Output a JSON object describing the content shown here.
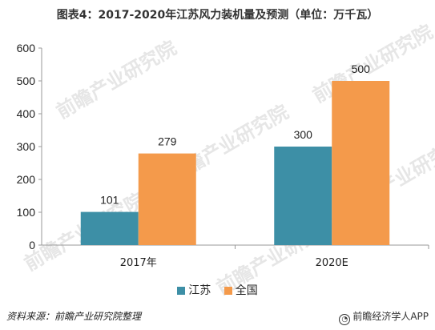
{
  "title": "图表4：2017-2020年江苏风力装机量及预测（单位：万千瓦）",
  "source": "资料来源：前瞻产业研究院整理",
  "app_label": "前瞻经济学人APP",
  "watermark_text": "前瞻产业研究院",
  "colors": {
    "jiangsu": "#3d8fa6",
    "national": "#f49a4b"
  },
  "chart_data": {
    "type": "bar",
    "title": "图表4：2017-2020年江苏风力装机量及预测（单位：万千瓦）",
    "categories": [
      "2017年",
      "2020E"
    ],
    "series": [
      {
        "name": "江苏",
        "values": [
          101,
          300
        ]
      },
      {
        "name": "全国",
        "values": [
          279,
          500
        ]
      }
    ],
    "xlabel": "",
    "ylabel": "",
    "ylim": [
      0,
      600
    ],
    "yticks": [
      "0",
      "100",
      "200",
      "300",
      "400",
      "500",
      "600"
    ],
    "grid": false,
    "legend": "bottom"
  }
}
